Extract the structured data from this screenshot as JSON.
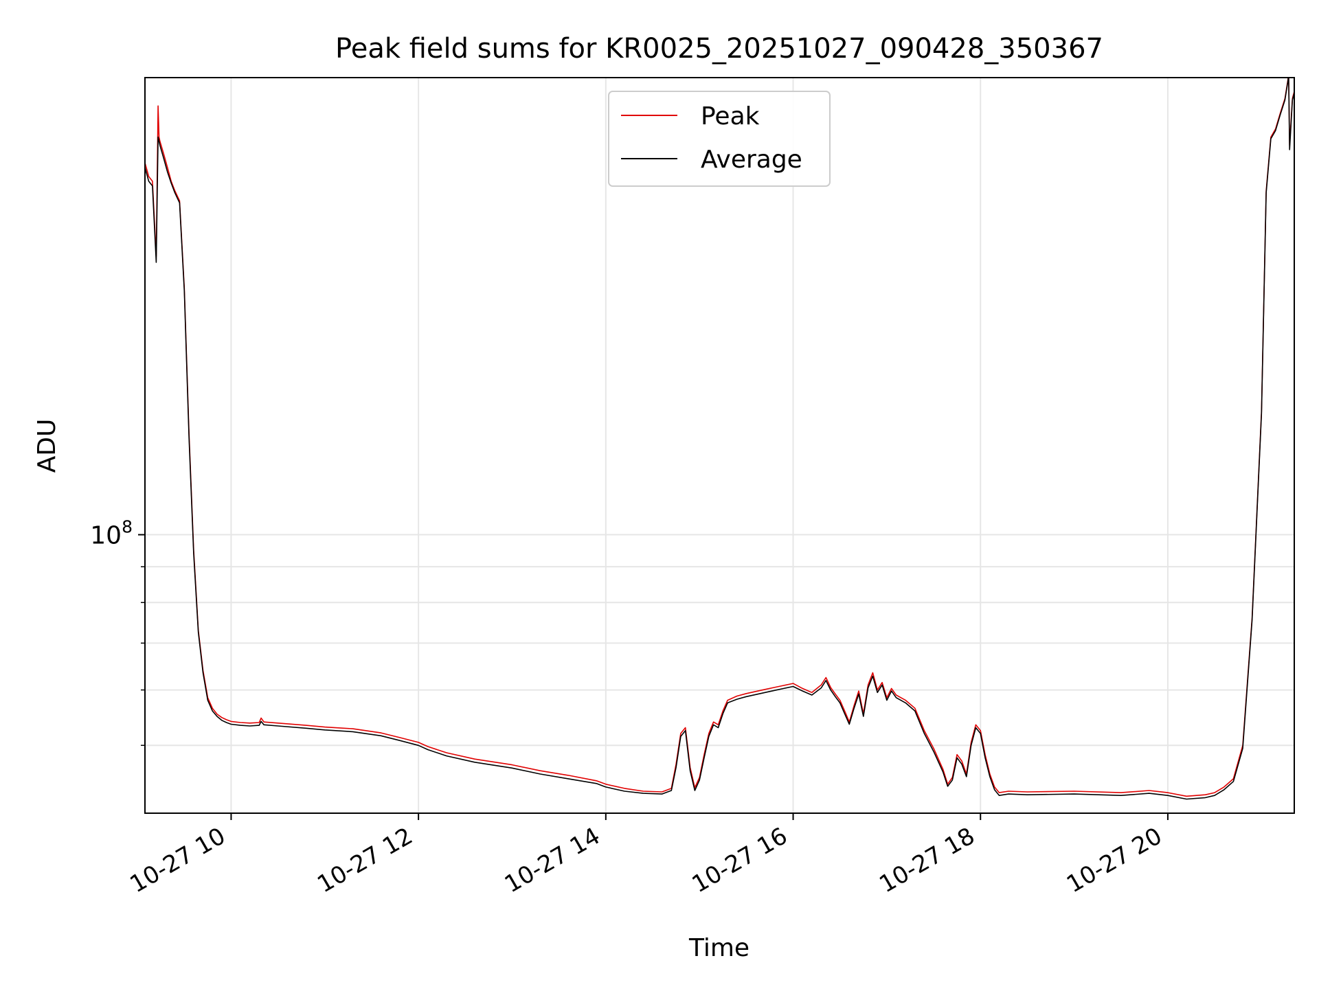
{
  "chart_data": {
    "type": "line",
    "title": "Peak field sums for KR0025_20251027_090428_350367",
    "xlabel": "Time",
    "ylabel": "ADU",
    "yscale": "log",
    "xlim": [
      9.08,
      21.35
    ],
    "ylim": [
      40000000,
      450000000
    ],
    "grid": true,
    "legend_position": "upper center",
    "x_ticks": [
      {
        "value": 10,
        "label": "10-27 10"
      },
      {
        "value": 12,
        "label": "10-27 12"
      },
      {
        "value": 14,
        "label": "10-27 14"
      },
      {
        "value": 16,
        "label": "10-27 16"
      },
      {
        "value": 18,
        "label": "10-27 18"
      },
      {
        "value": 20,
        "label": "10-27 20"
      }
    ],
    "y_major_ticks": [
      {
        "value": 100000000,
        "label_base": "10",
        "label_exp": "8"
      }
    ],
    "y_minor_ticks": [
      50000000,
      60000000,
      70000000,
      80000000,
      90000000
    ],
    "x": [
      9.08,
      9.12,
      9.16,
      9.2,
      9.22,
      9.23,
      9.24,
      9.28,
      9.32,
      9.36,
      9.4,
      9.45,
      9.5,
      9.55,
      9.6,
      9.65,
      9.7,
      9.75,
      9.8,
      9.85,
      9.9,
      9.95,
      10.0,
      10.1,
      10.2,
      10.3,
      10.32,
      10.35,
      10.5,
      10.8,
      11.0,
      11.3,
      11.6,
      11.8,
      12.0,
      12.1,
      12.3,
      12.6,
      13.0,
      13.3,
      13.6,
      13.9,
      14.0,
      14.2,
      14.4,
      14.6,
      14.7,
      14.75,
      14.8,
      14.85,
      14.9,
      14.95,
      15.0,
      15.05,
      15.1,
      15.15,
      15.2,
      15.25,
      15.3,
      15.4,
      15.5,
      15.6,
      15.7,
      15.8,
      15.9,
      16.0,
      16.1,
      16.2,
      16.3,
      16.35,
      16.4,
      16.45,
      16.5,
      16.55,
      16.6,
      16.65,
      16.7,
      16.75,
      16.8,
      16.85,
      16.9,
      16.95,
      17.0,
      17.05,
      17.1,
      17.2,
      17.3,
      17.4,
      17.5,
      17.6,
      17.65,
      17.7,
      17.75,
      17.8,
      17.85,
      17.9,
      17.95,
      18.0,
      18.05,
      18.1,
      18.15,
      18.2,
      18.3,
      18.5,
      19.0,
      19.5,
      19.8,
      20.0,
      20.2,
      20.4,
      20.5,
      20.6,
      20.7,
      20.8,
      20.9,
      21.0,
      21.05,
      21.1,
      21.15,
      21.2,
      21.25,
      21.28,
      21.29,
      21.3,
      21.33,
      21.35
    ],
    "series": [
      {
        "name": "Peak",
        "color": "#e00000",
        "values": [
          340000000,
          325000000,
          320000000,
          250000000,
          410000000,
          370000000,
          365000000,
          350000000,
          335000000,
          320000000,
          310000000,
          300000000,
          225000000,
          140000000,
          95000000,
          73000000,
          64000000,
          58500000,
          56500000,
          55400000,
          54800000,
          54400000,
          54100000,
          53900000,
          53800000,
          53900000,
          54700000,
          54000000,
          53800000,
          53400000,
          53100000,
          52800000,
          52100000,
          51300000,
          50500000,
          49800000,
          48800000,
          47800000,
          46900000,
          46000000,
          45300000,
          44500000,
          44000000,
          43400000,
          43000000,
          42900000,
          43400000,
          47000000,
          52000000,
          53000000,
          46500000,
          43500000,
          45000000,
          48500000,
          52000000,
          54000000,
          53500000,
          56000000,
          58000000,
          58800000,
          59300000,
          59700000,
          60100000,
          60500000,
          60900000,
          61300000,
          60300000,
          59500000,
          61000000,
          62500000,
          60500000,
          59200000,
          58000000,
          56000000,
          54000000,
          57000000,
          59800000,
          55500000,
          61000000,
          63500000,
          60000000,
          61500000,
          58500000,
          60300000,
          59000000,
          58000000,
          56500000,
          52500000,
          49500000,
          46200000,
          44000000,
          45000000,
          48500000,
          47500000,
          45500000,
          50500000,
          53500000,
          52500000,
          48500000,
          45500000,
          43600000,
          42800000,
          43000000,
          42900000,
          43000000,
          42800000,
          43100000,
          42800000,
          42300000,
          42500000,
          42800000,
          43600000,
          44800000,
          50000000,
          76000000,
          150000000,
          310000000,
          370000000,
          380000000,
          400000000,
          420000000,
          445000000,
          455000000,
          360000000,
          420000000,
          430000000
        ]
      },
      {
        "name": "Average",
        "color": "#000000",
        "values": [
          335000000,
          320000000,
          315000000,
          245000000,
          370000000,
          365000000,
          360000000,
          345000000,
          330000000,
          318000000,
          308000000,
          298000000,
          223000000,
          138000000,
          94000000,
          72500000,
          63500000,
          58000000,
          56000000,
          55000000,
          54300000,
          53900000,
          53600000,
          53400000,
          53300000,
          53400000,
          54100000,
          53500000,
          53300000,
          52900000,
          52600000,
          52300000,
          51600000,
          50800000,
          50000000,
          49300000,
          48300000,
          47300000,
          46400000,
          45500000,
          44800000,
          44100000,
          43600000,
          43000000,
          42700000,
          42600000,
          43100000,
          46500000,
          51500000,
          52500000,
          46000000,
          43100000,
          44600000,
          48000000,
          51500000,
          53500000,
          53000000,
          55500000,
          57500000,
          58200000,
          58700000,
          59100000,
          59500000,
          59900000,
          60300000,
          60700000,
          59800000,
          59000000,
          60400000,
          61900000,
          60000000,
          58700000,
          57500000,
          55500000,
          53600000,
          56500000,
          59200000,
          55000000,
          60400000,
          62800000,
          59500000,
          61000000,
          58000000,
          59800000,
          58500000,
          57500000,
          56000000,
          52000000,
          49000000,
          45800000,
          43700000,
          44600000,
          48000000,
          47000000,
          45100000,
          50000000,
          53000000,
          52000000,
          48000000,
          45100000,
          43200000,
          42400000,
          42600000,
          42500000,
          42600000,
          42400000,
          42700000,
          42400000,
          41900000,
          42100000,
          42400000,
          43200000,
          44400000,
          49500000,
          75500000,
          149000000,
          308000000,
          368000000,
          378000000,
          398000000,
          418000000,
          443000000,
          453000000,
          355000000,
          418000000,
          428000000
        ]
      }
    ]
  }
}
